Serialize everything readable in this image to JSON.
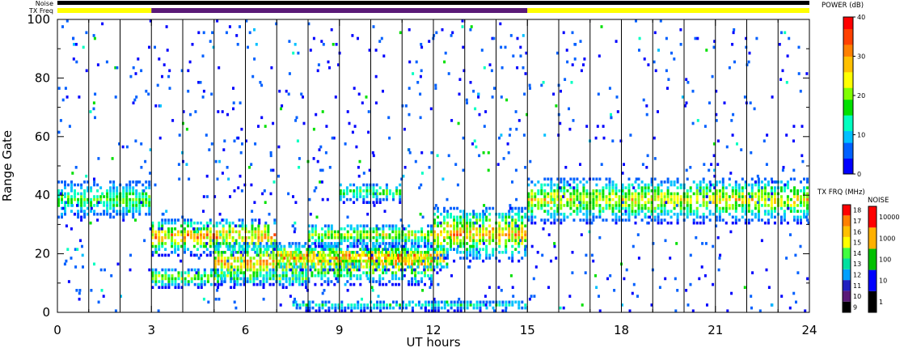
{
  "chart_data": {
    "type": "heatmap",
    "title": "",
    "xlabel": "UT hours",
    "ylabel": "Range Gate",
    "xlim": [
      0,
      24
    ],
    "ylim": [
      0,
      100
    ],
    "x_ticks": [
      "0",
      "3",
      "6",
      "9",
      "12",
      "15",
      "18",
      "21",
      "24"
    ],
    "y_ticks": [
      "0",
      "20",
      "40",
      "60",
      "80",
      "100"
    ],
    "strip_labels": {
      "noise": "Noise",
      "txfreq": "TX Freq"
    },
    "tx_freq_segments": [
      {
        "start": 0,
        "end": 3,
        "color": "#ffff00"
      },
      {
        "start": 3,
        "end": 15,
        "color": "#5a1a78"
      },
      {
        "start": 15,
        "end": 24,
        "color": "#ffff00"
      }
    ],
    "noise_strip_color": "#000000",
    "vertical_scan_lines_hours": [
      1,
      2,
      3,
      4,
      5,
      6,
      7,
      8,
      9,
      10,
      11,
      12,
      13,
      14,
      15,
      16,
      17,
      18,
      19,
      20,
      21,
      22,
      23
    ],
    "echo_bands": [
      {
        "name": "band-a",
        "x0": 0,
        "x1": 3,
        "y0": 31,
        "y1": 45,
        "peak_db": 18
      },
      {
        "name": "band-b",
        "x0": 3,
        "x1": 7,
        "y0": 19,
        "y1": 32,
        "peak_db": 32
      },
      {
        "name": "band-c",
        "x0": 3,
        "x1": 8,
        "y0": 8,
        "y1": 15,
        "peak_db": 22
      },
      {
        "name": "band-d",
        "x0": 5,
        "x1": 12,
        "y0": 9,
        "y1": 24,
        "peak_db": 30
      },
      {
        "name": "band-e",
        "x0": 7,
        "x1": 12.5,
        "y0": 14,
        "y1": 23,
        "peak_db": 34
      },
      {
        "name": "band-f",
        "x0": 8,
        "x1": 12,
        "y0": 22,
        "y1": 30,
        "peak_db": 24
      },
      {
        "name": "band-g",
        "x0": 9,
        "x1": 11,
        "y0": 37,
        "y1": 44,
        "peak_db": 18
      },
      {
        "name": "band-h",
        "x0": 12,
        "x1": 15,
        "y0": 17,
        "y1": 36,
        "peak_db": 30
      },
      {
        "name": "band-i",
        "x0": 15,
        "x1": 24,
        "y0": 30,
        "y1": 46,
        "peak_db": 26
      },
      {
        "name": "band-j",
        "x0": 7.5,
        "x1": 15,
        "y0": 0,
        "y1": 4,
        "peak_db": 12
      }
    ],
    "colorbars": {
      "power": {
        "title": "POWER (dB)",
        "ticks": [
          "0",
          "10",
          "20",
          "30",
          "40"
        ],
        "min": 0,
        "max": 40,
        "colors": [
          "#0000ff",
          "#0060ff",
          "#00c0ff",
          "#00ffc0",
          "#00e000",
          "#80ff00",
          "#ffff00",
          "#ffc000",
          "#ff8000",
          "#ff4000",
          "#ff0000"
        ]
      },
      "txfreq": {
        "title": "TX FRQ (MHz)",
        "ticks": [
          "9",
          "10",
          "11",
          "12",
          "13",
          "14",
          "15",
          "16",
          "17",
          "18"
        ],
        "colors": [
          "#000000",
          "#5a1a78",
          "#2020c0",
          "#00a0ff",
          "#00e0a0",
          "#40ff40",
          "#ffff00",
          "#ffc000",
          "#ff8000",
          "#ff0000"
        ]
      },
      "noise": {
        "title": "NOISE",
        "ticks": [
          "1",
          "10",
          "100",
          "1000",
          "10000"
        ],
        "colors": [
          "#000000",
          "#0000ff",
          "#00c000",
          "#ffb000",
          "#ff0000"
        ]
      }
    }
  }
}
